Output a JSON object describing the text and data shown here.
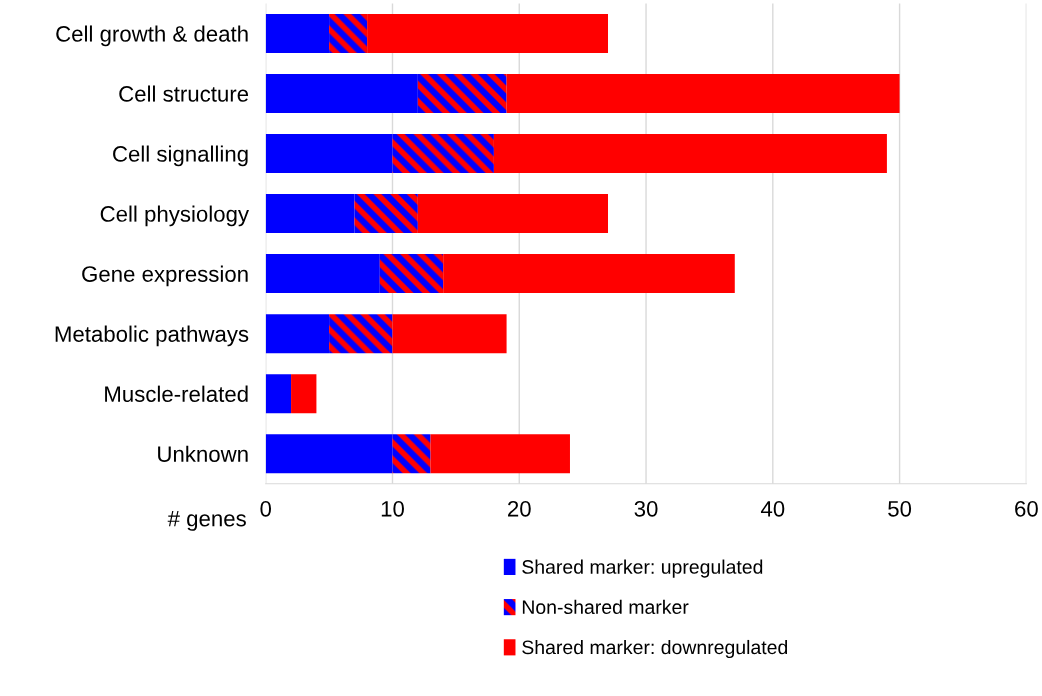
{
  "chart_data": {
    "type": "bar",
    "orientation": "horizontal",
    "stacked": true,
    "xlabel": "# genes",
    "categories": [
      "Cell growth & death",
      "Cell structure",
      "Cell signalling",
      "Cell physiology",
      "Gene expression",
      "Metabolic pathways",
      "Muscle-related",
      "Unknown"
    ],
    "series": [
      {
        "name": "Shared marker: upregulated",
        "color": "#0000ff",
        "values": [
          5,
          12,
          10,
          7,
          9,
          5,
          2,
          10
        ]
      },
      {
        "name": "Non-shared marker",
        "color": "#0000ff",
        "values": [
          3,
          7,
          8,
          5,
          5,
          5,
          0,
          3
        ]
      },
      {
        "name": "Shared marker: downregulated",
        "color": "#ff0000",
        "values": [
          19,
          31,
          31,
          15,
          23,
          9,
          2,
          11
        ]
      }
    ],
    "xlim": [
      0,
      60
    ],
    "xticks": [
      0,
      10,
      20,
      30,
      40,
      50,
      60
    ],
    "grid": "x",
    "legend": "bottom"
  }
}
